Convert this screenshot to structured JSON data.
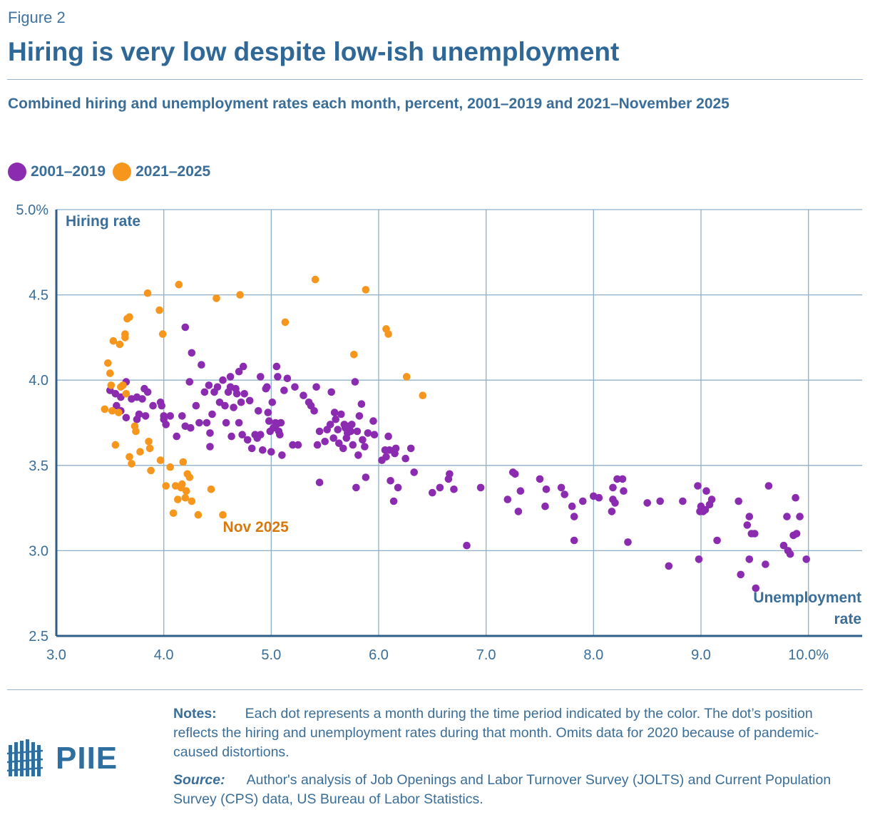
{
  "figure_label": "Figure 2",
  "title": "Hiring is very low despite low-ish unemployment",
  "subtitle": "Combined hiring and unemployment rates each month, percent, 2001–2019 and 2021–November 2025",
  "colors": {
    "series_2001_2019": "#8a2bb0",
    "series_2021_2025": "#f7961c",
    "axis": "#2f5f88",
    "grid": "#8fb0cb",
    "text": "#3a6e99",
    "annotation": "#d9780a"
  },
  "notes": {
    "label": "Notes:",
    "text": "Each dot represents a month during the time period indicated by the color. The dot’s position reflects the hiring and unemployment rates during that month. Omits data for 2020 because of pandemic-caused distortions.",
    "source_label": "Source:",
    "source_text": "Author's analysis of Job Openings and Labor Turnover Survey (JOLTS) and Current Population Survey (CPS) data, US Bureau of Labor Statistics."
  },
  "logo": {
    "text": "PIIE",
    "icon": "piie-building-icon"
  },
  "chart_data": {
    "type": "scatter",
    "xlabel": "Unemployment rate",
    "ylabel": "Hiring rate",
    "xlim": [
      3.0,
      10.5
    ],
    "ylim": [
      2.5,
      5.0
    ],
    "x_ticks": [
      3,
      4,
      5,
      6,
      7,
      8,
      9,
      10
    ],
    "x_tick_labels": [
      "3.0",
      "4.0",
      "5.0",
      "6.0",
      "7.0",
      "8.0",
      "9.0",
      "10.0%"
    ],
    "y_ticks": [
      2.5,
      3.0,
      3.5,
      4.0,
      4.5,
      5.0
    ],
    "y_tick_labels": [
      "2.5",
      "3.0",
      "3.5",
      "4.0",
      "4.5",
      "5.0%"
    ],
    "grid": true,
    "legend": [
      "2001–2019",
      "2021–2025"
    ],
    "legend_position": "top-left",
    "annotations": [
      {
        "text": "Nov 2025",
        "x": 4.55,
        "y": 3.11
      }
    ],
    "series": [
      {
        "name": "2001–2019",
        "points": [
          [
            3.5,
            3.94
          ],
          [
            3.6,
            3.9
          ],
          [
            3.65,
            3.99
          ],
          [
            3.55,
            3.92
          ],
          [
            3.56,
            3.85
          ],
          [
            3.6,
            3.82
          ],
          [
            3.65,
            3.78
          ],
          [
            3.7,
            3.89
          ],
          [
            3.75,
            3.9
          ],
          [
            3.75,
            3.77
          ],
          [
            3.77,
            3.8
          ],
          [
            3.8,
            3.89
          ],
          [
            3.82,
            3.95
          ],
          [
            3.83,
            3.79
          ],
          [
            3.85,
            3.93
          ],
          [
            3.9,
            3.85
          ],
          [
            3.97,
            3.87
          ],
          [
            3.98,
            3.85
          ],
          [
            4.0,
            3.79
          ],
          [
            4.0,
            3.77
          ],
          [
            4.02,
            3.74
          ],
          [
            4.06,
            3.79
          ],
          [
            4.12,
            3.67
          ],
          [
            4.17,
            3.79
          ],
          [
            4.2,
            3.73
          ],
          [
            4.2,
            4.31
          ],
          [
            4.24,
            3.99
          ],
          [
            4.25,
            3.72
          ],
          [
            4.26,
            4.16
          ],
          [
            4.3,
            3.85
          ],
          [
            4.33,
            3.75
          ],
          [
            4.35,
            4.09
          ],
          [
            4.38,
            3.93
          ],
          [
            4.4,
            3.75
          ],
          [
            4.42,
            3.97
          ],
          [
            4.43,
            3.69
          ],
          [
            4.43,
            3.61
          ],
          [
            4.45,
            3.8
          ],
          [
            4.47,
            3.93
          ],
          [
            4.5,
            3.96
          ],
          [
            4.52,
            3.87
          ],
          [
            4.55,
            4.0
          ],
          [
            4.57,
            3.85
          ],
          [
            4.58,
            3.75
          ],
          [
            4.6,
            3.93
          ],
          [
            4.62,
            3.96
          ],
          [
            4.62,
            4.02
          ],
          [
            4.63,
            3.67
          ],
          [
            4.65,
            3.84
          ],
          [
            4.67,
            3.95
          ],
          [
            4.68,
            3.92
          ],
          [
            4.7,
            3.75
          ],
          [
            4.7,
            4.05
          ],
          [
            4.72,
            3.87
          ],
          [
            4.73,
            3.68
          ],
          [
            4.74,
            4.08
          ],
          [
            4.75,
            3.92
          ],
          [
            4.78,
            3.65
          ],
          [
            4.8,
            3.88
          ],
          [
            4.82,
            3.6
          ],
          [
            4.85,
            3.68
          ],
          [
            4.87,
            3.66
          ],
          [
            4.88,
            3.82
          ],
          [
            4.9,
            4.02
          ],
          [
            4.9,
            3.68
          ],
          [
            4.92,
            3.59
          ],
          [
            4.95,
            3.95
          ],
          [
            4.96,
            3.96
          ],
          [
            4.97,
            3.81
          ],
          [
            4.98,
            3.76
          ],
          [
            4.99,
            3.7
          ],
          [
            5.0,
            3.58
          ],
          [
            5.01,
            3.87
          ],
          [
            5.02,
            3.72
          ],
          [
            5.04,
            3.75
          ],
          [
            5.05,
            4.08
          ],
          [
            5.05,
            3.74
          ],
          [
            5.06,
            4.02
          ],
          [
            5.07,
            3.7
          ],
          [
            5.08,
            3.68
          ],
          [
            5.09,
            3.75
          ],
          [
            5.1,
            3.56
          ],
          [
            5.12,
            3.94
          ],
          [
            5.15,
            4.01
          ],
          [
            5.2,
            3.62
          ],
          [
            5.22,
            3.96
          ],
          [
            5.25,
            3.62
          ],
          [
            5.3,
            3.91
          ],
          [
            5.35,
            3.87
          ],
          [
            5.37,
            3.85
          ],
          [
            5.4,
            3.82
          ],
          [
            5.42,
            3.96
          ],
          [
            5.43,
            3.62
          ],
          [
            5.45,
            3.7
          ],
          [
            5.45,
            3.4
          ],
          [
            5.5,
            3.64
          ],
          [
            5.52,
            3.71
          ],
          [
            5.55,
            3.74
          ],
          [
            5.56,
            3.93
          ],
          [
            5.58,
            3.66
          ],
          [
            5.59,
            3.81
          ],
          [
            5.6,
            3.77
          ],
          [
            5.62,
            3.71
          ],
          [
            5.63,
            3.63
          ],
          [
            5.65,
            3.8
          ],
          [
            5.67,
            3.6
          ],
          [
            5.68,
            3.74
          ],
          [
            5.69,
            3.72
          ],
          [
            5.7,
            3.66
          ],
          [
            5.71,
            3.69
          ],
          [
            5.72,
            3.73
          ],
          [
            5.74,
            3.7
          ],
          [
            5.75,
            3.74
          ],
          [
            5.76,
            3.62
          ],
          [
            5.78,
            3.99
          ],
          [
            5.79,
            3.37
          ],
          [
            5.8,
            3.7
          ],
          [
            5.81,
            3.56
          ],
          [
            5.82,
            3.79
          ],
          [
            5.84,
            3.86
          ],
          [
            5.85,
            3.65
          ],
          [
            5.87,
            3.61
          ],
          [
            5.88,
            3.43
          ],
          [
            5.9,
            3.69
          ],
          [
            5.95,
            3.76
          ],
          [
            5.96,
            3.68
          ],
          [
            6.03,
            3.53
          ],
          [
            6.06,
            3.59
          ],
          [
            6.07,
            3.55
          ],
          [
            6.09,
            3.67
          ],
          [
            6.1,
            3.59
          ],
          [
            6.11,
            3.41
          ],
          [
            6.14,
            3.29
          ],
          [
            6.15,
            3.57
          ],
          [
            6.16,
            3.6
          ],
          [
            6.18,
            3.37
          ],
          [
            6.25,
            3.54
          ],
          [
            6.3,
            3.6
          ],
          [
            6.33,
            3.46
          ],
          [
            6.5,
            3.34
          ],
          [
            6.57,
            3.37
          ],
          [
            6.65,
            3.42
          ],
          [
            6.66,
            3.45
          ],
          [
            6.7,
            3.36
          ],
          [
            6.82,
            3.03
          ],
          [
            6.95,
            3.37
          ],
          [
            7.2,
            3.3
          ],
          [
            7.25,
            3.46
          ],
          [
            7.27,
            3.45
          ],
          [
            7.3,
            3.23
          ],
          [
            7.32,
            3.35
          ],
          [
            7.5,
            3.42
          ],
          [
            7.55,
            3.26
          ],
          [
            7.56,
            3.36
          ],
          [
            7.7,
            3.37
          ],
          [
            7.73,
            3.33
          ],
          [
            7.8,
            3.26
          ],
          [
            7.82,
            3.2
          ],
          [
            7.82,
            3.06
          ],
          [
            7.9,
            3.29
          ],
          [
            8.0,
            3.32
          ],
          [
            8.05,
            3.31
          ],
          [
            8.17,
            3.23
          ],
          [
            8.18,
            3.37
          ],
          [
            8.18,
            3.3
          ],
          [
            8.2,
            3.28
          ],
          [
            8.22,
            3.42
          ],
          [
            8.27,
            3.42
          ],
          [
            8.28,
            3.35
          ],
          [
            8.32,
            3.05
          ],
          [
            8.5,
            3.28
          ],
          [
            8.62,
            3.29
          ],
          [
            8.7,
            2.91
          ],
          [
            8.83,
            3.29
          ],
          [
            8.97,
            3.38
          ],
          [
            8.98,
            2.95
          ],
          [
            8.99,
            3.23
          ],
          [
            9.0,
            3.26
          ],
          [
            9.02,
            3.23
          ],
          [
            9.04,
            3.24
          ],
          [
            9.05,
            3.35
          ],
          [
            9.08,
            3.27
          ],
          [
            9.1,
            3.3
          ],
          [
            9.15,
            3.06
          ],
          [
            9.35,
            3.29
          ],
          [
            9.37,
            2.86
          ],
          [
            9.43,
            3.15
          ],
          [
            9.45,
            2.95
          ],
          [
            9.45,
            3.2
          ],
          [
            9.47,
            3.1
          ],
          [
            9.5,
            3.1
          ],
          [
            9.51,
            2.78
          ],
          [
            9.6,
            2.92
          ],
          [
            9.63,
            3.38
          ],
          [
            9.77,
            3.03
          ],
          [
            9.8,
            3.2
          ],
          [
            9.81,
            3.0
          ],
          [
            9.83,
            2.98
          ],
          [
            9.86,
            3.09
          ],
          [
            9.88,
            3.31
          ],
          [
            9.89,
            3.1
          ],
          [
            9.92,
            3.2
          ],
          [
            9.98,
            2.95
          ]
        ]
      },
      {
        "name": "2021–2025",
        "points": [
          [
            3.45,
            3.83
          ],
          [
            3.48,
            4.1
          ],
          [
            3.5,
            4.04
          ],
          [
            3.51,
            3.97
          ],
          [
            3.52,
            3.82
          ],
          [
            3.53,
            4.23
          ],
          [
            3.55,
            3.62
          ],
          [
            3.58,
            3.81
          ],
          [
            3.59,
            4.21
          ],
          [
            3.6,
            3.96
          ],
          [
            3.62,
            3.97
          ],
          [
            3.64,
            4.25
          ],
          [
            3.64,
            4.27
          ],
          [
            3.65,
            3.92
          ],
          [
            3.66,
            4.36
          ],
          [
            3.68,
            4.37
          ],
          [
            3.68,
            3.55
          ],
          [
            3.7,
            3.51
          ],
          [
            3.73,
            3.73
          ],
          [
            3.74,
            3.7
          ],
          [
            3.78,
            3.58
          ],
          [
            3.85,
            4.51
          ],
          [
            3.86,
            3.64
          ],
          [
            3.87,
            3.6
          ],
          [
            3.88,
            3.47
          ],
          [
            3.96,
            4.41
          ],
          [
            3.97,
            3.53
          ],
          [
            3.99,
            4.27
          ],
          [
            4.02,
            3.38
          ],
          [
            4.06,
            3.49
          ],
          [
            4.09,
            3.22
          ],
          [
            4.11,
            3.38
          ],
          [
            4.13,
            3.3
          ],
          [
            4.14,
            4.56
          ],
          [
            4.16,
            3.37
          ],
          [
            4.17,
            3.39
          ],
          [
            4.18,
            3.52
          ],
          [
            4.2,
            3.31
          ],
          [
            4.21,
            3.35
          ],
          [
            4.22,
            3.45
          ],
          [
            4.24,
            3.43
          ],
          [
            4.26,
            3.29
          ],
          [
            4.32,
            3.21
          ],
          [
            4.44,
            3.36
          ],
          [
            4.49,
            4.48
          ],
          [
            4.55,
            3.21
          ],
          [
            4.71,
            4.5
          ],
          [
            5.13,
            4.34
          ],
          [
            5.41,
            4.59
          ],
          [
            5.77,
            4.15
          ],
          [
            5.88,
            4.53
          ],
          [
            6.07,
            4.3
          ],
          [
            6.09,
            4.27
          ],
          [
            6.26,
            4.02
          ],
          [
            6.41,
            3.91
          ]
        ]
      }
    ]
  }
}
